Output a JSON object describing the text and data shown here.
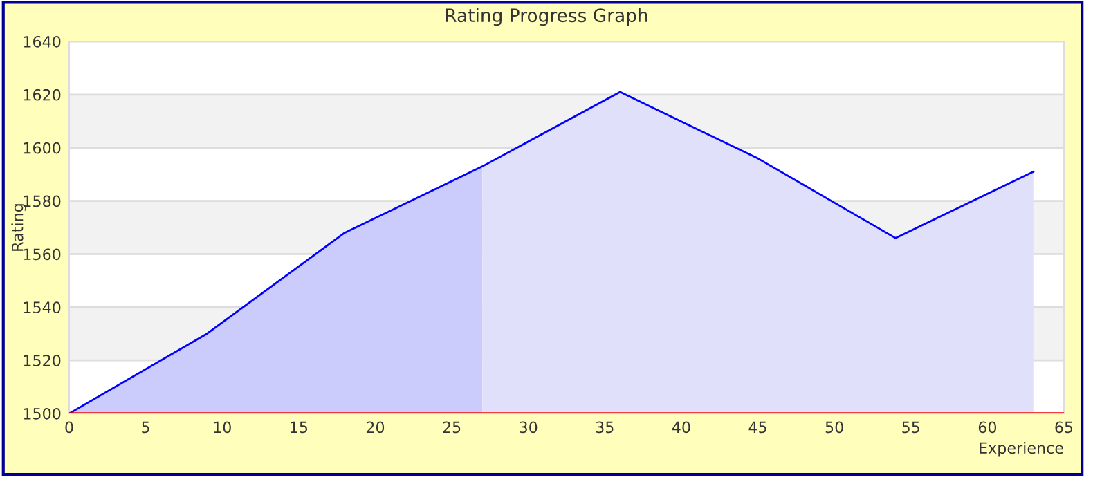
{
  "chart_data": {
    "type": "area",
    "title": "Rating Progress Graph",
    "xlabel": "Experience",
    "ylabel": "Rating",
    "series": [
      {
        "color": "#ccccfc",
        "x": [
          0,
          9,
          18,
          27
        ],
        "values": [
          1500,
          1530,
          1568,
          1593
        ]
      },
      {
        "color": "#e0e0fa",
        "x": [
          27,
          36,
          45,
          54,
          63
        ],
        "values": [
          1593,
          1621,
          1596,
          1566,
          1591
        ]
      },
      {
        "type": "line",
        "color": "#0000ff",
        "x": [
          0,
          9,
          18,
          27,
          36,
          45,
          54,
          63
        ],
        "values": [
          1500,
          1530,
          1568,
          1593,
          1621,
          1596,
          1566,
          1591
        ]
      }
    ],
    "ref_lines": [
      {
        "axis": "y",
        "value": 1500,
        "color": "#ff0000"
      }
    ],
    "xlim": [
      0,
      65
    ],
    "xticks": [
      0,
      5,
      10,
      15,
      20,
      25,
      30,
      35,
      40,
      45,
      50,
      55,
      60,
      65
    ],
    "ylim": [
      1500,
      1640
    ],
    "yticks": [
      1500,
      1520,
      1540,
      1560,
      1580,
      1600,
      1620,
      1640
    ],
    "grid": "y"
  }
}
